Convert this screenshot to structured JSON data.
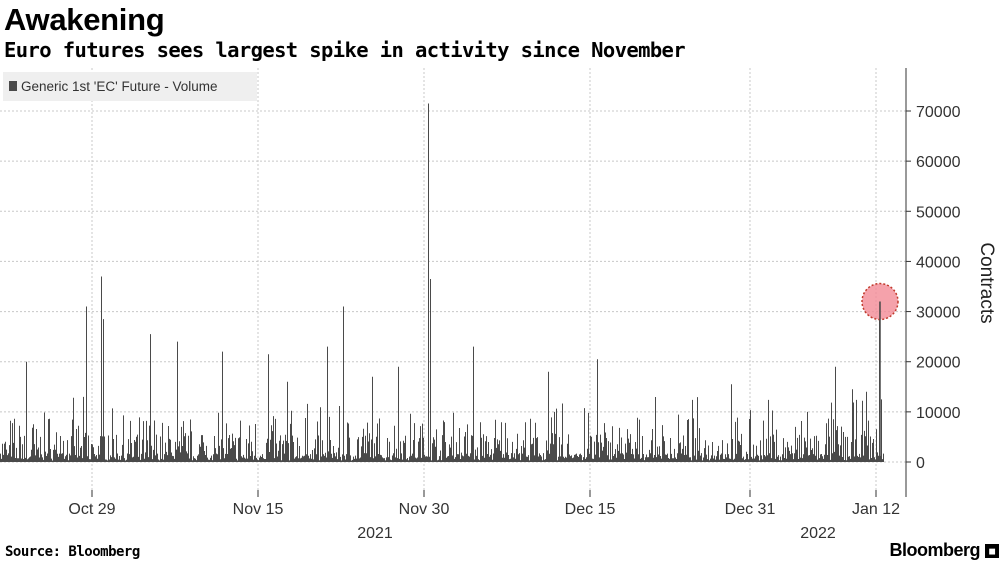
{
  "header": {
    "title": "Awakening",
    "subtitle": "Euro futures sees largest spike in activity since November"
  },
  "footer": {
    "source": "Source: Bloomberg",
    "brand": "Bloomberg"
  },
  "colors": {
    "bars": "#4a4a4a",
    "grid": "#c8c8c8",
    "highlight_fill": "#f28b96",
    "highlight_stroke": "#c0392b"
  },
  "chart_data": {
    "type": "bar",
    "legend": {
      "label": "Generic 1st 'EC' Future - Volume",
      "position": "top-left"
    },
    "ylabel": "Contracts",
    "ylim": [
      -6500,
      78000
    ],
    "y_ticks": [
      0,
      10000,
      20000,
      30000,
      40000,
      50000,
      60000,
      70000
    ],
    "y_tick_labels": [
      "0",
      "10000",
      "20000",
      "30000",
      "40000",
      "50000",
      "60000",
      "70000"
    ],
    "x_ticks": [
      "Oct 29",
      "Nov 15",
      "Nov 30",
      "Dec 15",
      "Dec 31",
      "Jan 12"
    ],
    "x_year_labels": [
      {
        "label": "2021",
        "at": "Nov 30"
      },
      {
        "label": "2022",
        "at": "Jan 12"
      }
    ],
    "grid": true,
    "series": [
      {
        "name": "Generic 1st 'EC' Future - Volume",
        "x_range": [
          "2021-10-21",
          "2022-01-13"
        ],
        "values_note_omitted": "",
        "values": []
      }
    ],
    "highlight": {
      "at": "Jan 12",
      "value": 32000
    }
  }
}
